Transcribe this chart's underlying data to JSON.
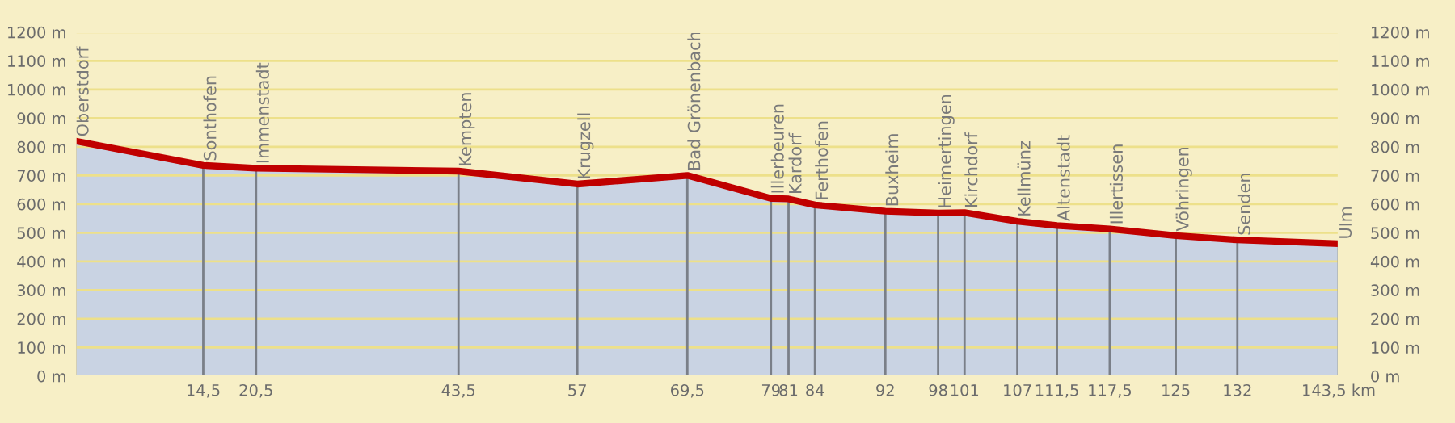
{
  "chart_data": {
    "type": "area",
    "x": [
      0,
      14.5,
      20.5,
      43.5,
      57,
      69.5,
      79,
      81,
      84,
      92,
      98,
      101,
      107,
      111.5,
      117.5,
      125,
      132,
      143.5
    ],
    "series": [
      {
        "color": "#c00000",
        "values": [
          820,
          735,
          725,
          715,
          670,
          700,
          620,
          618,
          597,
          575,
          569,
          570,
          540,
          525,
          513,
          490,
          475,
          462
        ]
      }
    ],
    "xlim": [
      0,
      143.5
    ],
    "xticks": [
      {
        "value": 14.5,
        "label": "14,5"
      },
      {
        "value": 20.5,
        "label": "20,5"
      },
      {
        "value": 43.5,
        "label": "43,5"
      },
      57,
      {
        "value": 69.5,
        "label": "69,5"
      },
      79,
      81,
      84,
      92,
      98,
      101,
      107,
      {
        "value": 111.5,
        "label": "111,5"
      },
      {
        "value": 117.5,
        "label": "117,5"
      },
      125,
      132,
      {
        "value": 143.5,
        "label": "143,5 km"
      }
    ],
    "ylim": [
      0,
      1200
    ],
    "yticks": [
      {
        "value": 0,
        "label": "0 m"
      },
      {
        "value": 100,
        "label": "100 m"
      },
      {
        "value": 200,
        "label": "200 m"
      },
      {
        "value": 300,
        "label": "300 m"
      },
      {
        "value": 400,
        "label": "400 m"
      },
      {
        "value": 500,
        "label": "500 m"
      },
      {
        "value": 600,
        "label": "600 m"
      },
      {
        "value": 700,
        "label": "700 m"
      },
      {
        "value": 800,
        "label": "800 m"
      },
      {
        "value": 900,
        "label": "900 m"
      },
      {
        "value": 1000,
        "label": "1000 m"
      },
      {
        "value": 1100,
        "label": "1100 m"
      },
      {
        "value": 1200,
        "label": "1200 m"
      }
    ],
    "y2lim": [
      0,
      1200
    ],
    "y2ticks": [
      {
        "value": 0,
        "label": "0 m"
      },
      {
        "value": 100,
        "label": "100 m"
      },
      {
        "value": 200,
        "label": "200 m"
      },
      {
        "value": 300,
        "label": "300 m"
      },
      {
        "value": 400,
        "label": "400 m"
      },
      {
        "value": 500,
        "label": "500 m"
      },
      {
        "value": 600,
        "label": "600 m"
      },
      {
        "value": 700,
        "label": "700 m"
      },
      {
        "value": 800,
        "label": "800 m"
      },
      {
        "value": 900,
        "label": "900 m"
      },
      {
        "value": 1000,
        "label": "1000 m"
      },
      {
        "value": 1100,
        "label": "1100 m"
      },
      {
        "value": 1200,
        "label": "1200 m"
      }
    ],
    "grid": "y",
    "ref_lines": [
      {
        "axis": "x",
        "value": 0,
        "label": "Oberstdorf",
        "color": "#7a7f88"
      },
      {
        "axis": "x",
        "value": 14.5,
        "label": "Sonthofen",
        "color": "#7a7f88"
      },
      {
        "axis": "x",
        "value": 20.5,
        "label": "Immenstadt",
        "color": "#7a7f88"
      },
      {
        "axis": "x",
        "value": 43.5,
        "label": "Kempten",
        "color": "#7a7f88"
      },
      {
        "axis": "x",
        "value": 57,
        "label": "Krugzell",
        "color": "#7a7f88"
      },
      {
        "axis": "x",
        "value": 69.5,
        "label": "Bad Grönenbach",
        "color": "#7a7f88"
      },
      {
        "axis": "x",
        "value": 79,
        "label": "Illerbeuren",
        "color": "#7a7f88"
      },
      {
        "axis": "x",
        "value": 81,
        "label": "Kardorf",
        "color": "#7a7f88"
      },
      {
        "axis": "x",
        "value": 84,
        "label": "Ferthofen",
        "color": "#7a7f88"
      },
      {
        "axis": "x",
        "value": 92,
        "label": "Buxheim",
        "color": "#7a7f88"
      },
      {
        "axis": "x",
        "value": 98,
        "label": "Heimertingen",
        "color": "#7a7f88"
      },
      {
        "axis": "x",
        "value": 101,
        "label": "Kirchdorf",
        "color": "#7a7f88"
      },
      {
        "axis": "x",
        "value": 107,
        "label": "Kellmünz",
        "color": "#7a7f88"
      },
      {
        "axis": "x",
        "value": 111.5,
        "label": "Altenstadt",
        "color": "#7a7f88"
      },
      {
        "axis": "x",
        "value": 117.5,
        "label": "Illertissen",
        "color": "#7a7f88"
      },
      {
        "axis": "x",
        "value": 125,
        "label": "Vöhringen",
        "color": "#7a7f88"
      },
      {
        "axis": "x",
        "value": 132,
        "label": "Senden",
        "color": "#7a7f88"
      },
      {
        "axis": "x",
        "value": 143.5,
        "label": "Ulm",
        "color": "#7a7f88"
      }
    ]
  }
}
